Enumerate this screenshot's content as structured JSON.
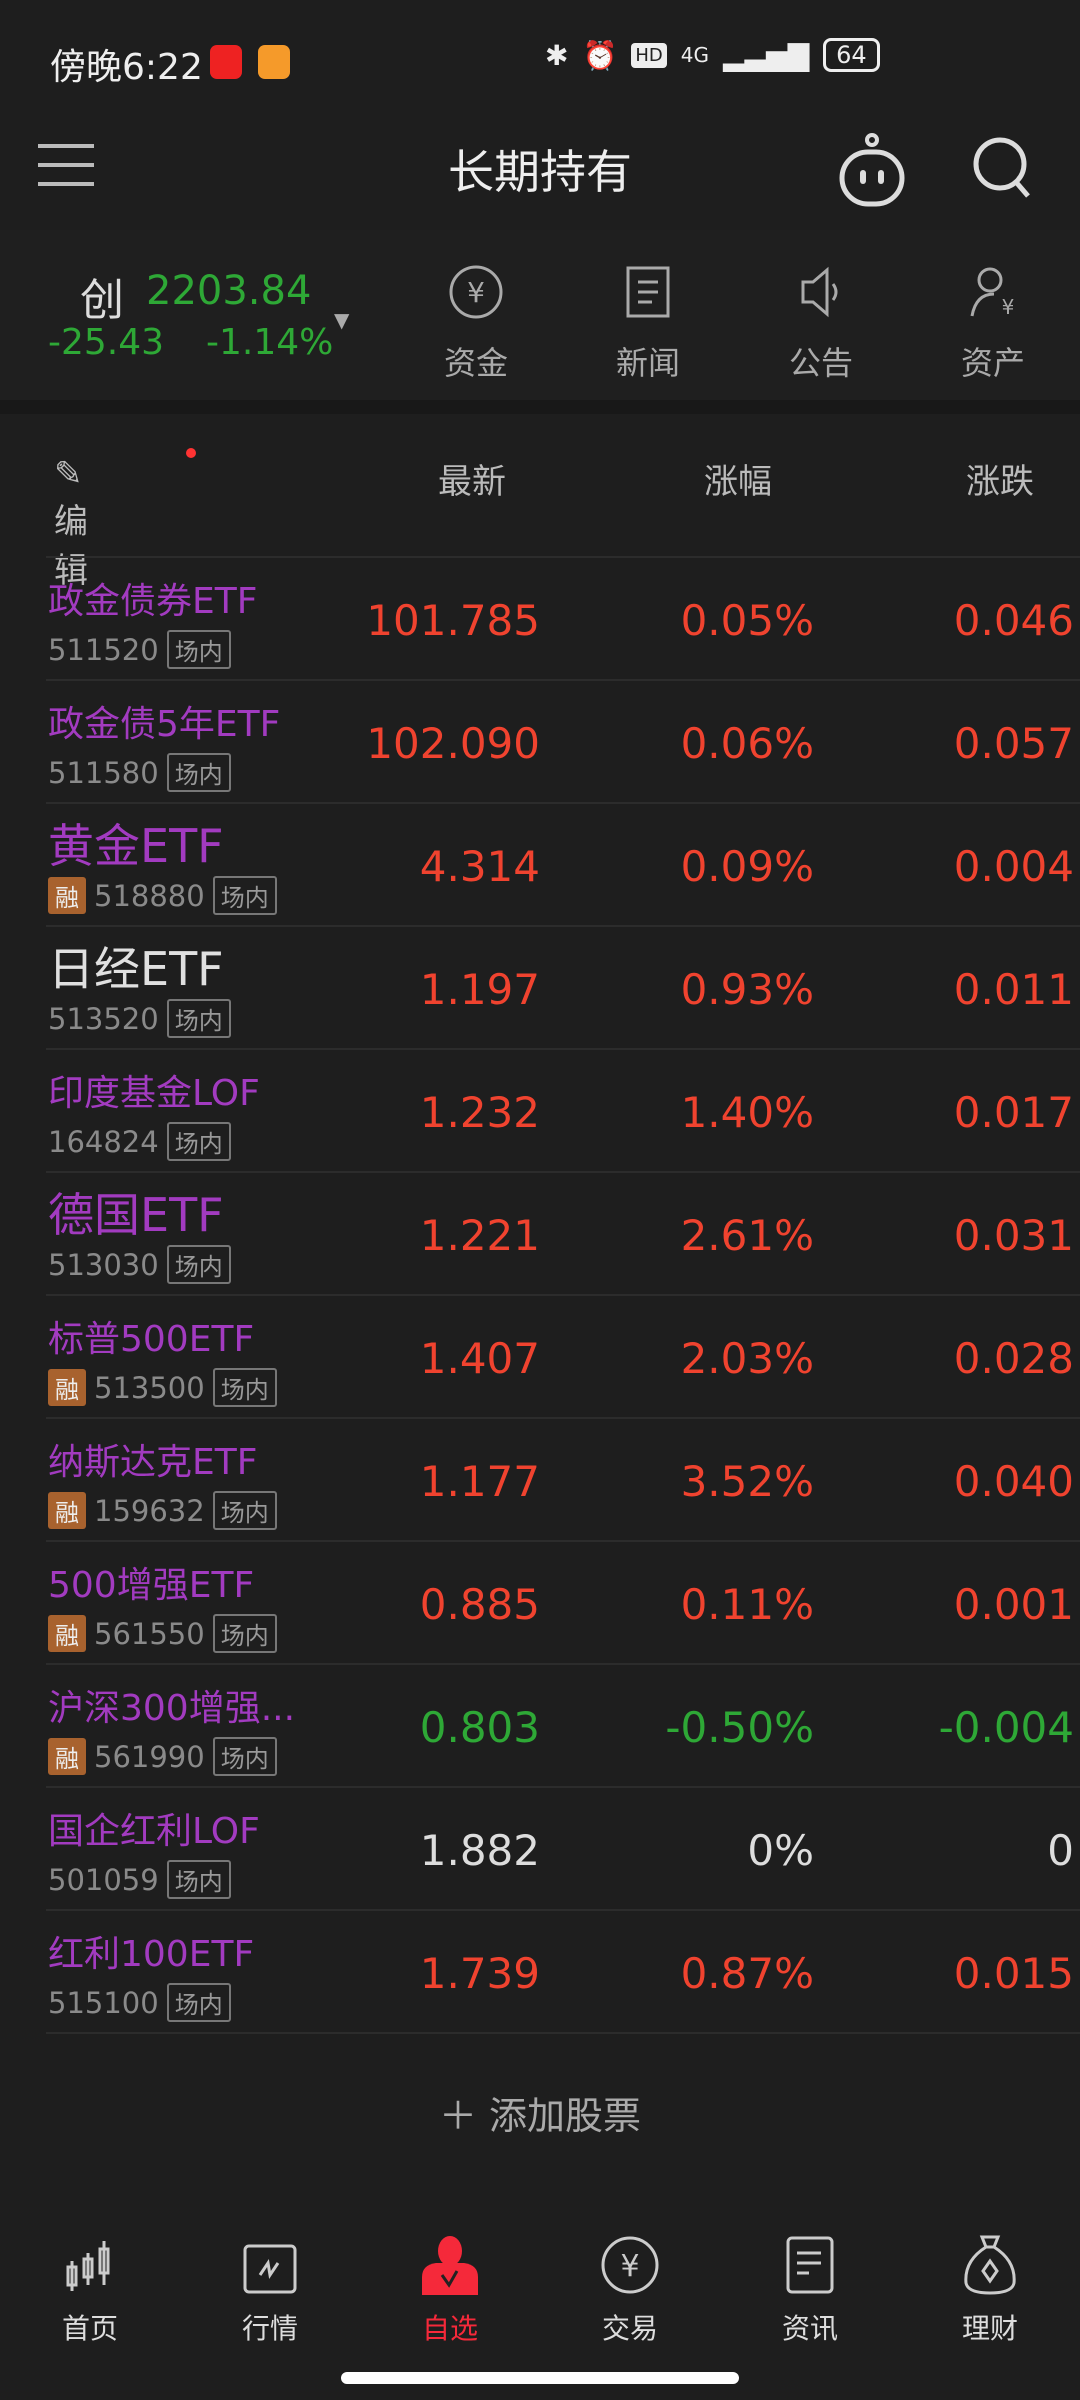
{
  "status": {
    "time": "傍晚6:22",
    "network": "4G",
    "hd": "HD",
    "battery": "64"
  },
  "header": {
    "title": "长期持有"
  },
  "index": {
    "name": "创",
    "value": "2203.84",
    "change": "-25.43",
    "percent": "-1.14%"
  },
  "quick": [
    {
      "label": "资金",
      "icon": "yuan-circle-icon"
    },
    {
      "label": "新闻",
      "icon": "document-icon"
    },
    {
      "label": "公告",
      "icon": "speaker-icon"
    },
    {
      "label": "资产",
      "icon": "person-yuan-icon"
    }
  ],
  "columns": {
    "edit": "编辑",
    "latest": "最新",
    "change_pct": "涨幅",
    "change": "涨跌"
  },
  "rows": [
    {
      "name": "政金债券ETF",
      "code": "511520",
      "tag": "场内",
      "rong": false,
      "price": "101.785",
      "pct": "0.05%",
      "chg": "0.046",
      "trend": "up"
    },
    {
      "name": "政金债5年ETF",
      "code": "511580",
      "tag": "场内",
      "rong": false,
      "price": "102.090",
      "pct": "0.06%",
      "chg": "0.057",
      "trend": "up"
    },
    {
      "name": "黄金ETF",
      "code": "518880",
      "tag": "场内",
      "rong": true,
      "price": "4.314",
      "pct": "0.09%",
      "chg": "0.004",
      "trend": "up",
      "big": true
    },
    {
      "name": "日经ETF",
      "code": "513520",
      "tag": "场内",
      "rong": false,
      "price": "1.197",
      "pct": "0.93%",
      "chg": "0.011",
      "trend": "up",
      "big": true,
      "white": true
    },
    {
      "name": "印度基金LOF",
      "code": "164824",
      "tag": "场内",
      "rong": false,
      "price": "1.232",
      "pct": "1.40%",
      "chg": "0.017",
      "trend": "up"
    },
    {
      "name": "德国ETF",
      "code": "513030",
      "tag": "场内",
      "rong": false,
      "price": "1.221",
      "pct": "2.61%",
      "chg": "0.031",
      "trend": "up",
      "big": true
    },
    {
      "name": "标普500ETF",
      "code": "513500",
      "tag": "场内",
      "rong": true,
      "price": "1.407",
      "pct": "2.03%",
      "chg": "0.028",
      "trend": "up"
    },
    {
      "name": "纳斯达克ETF",
      "code": "159632",
      "tag": "场内",
      "rong": true,
      "price": "1.177",
      "pct": "3.52%",
      "chg": "0.040",
      "trend": "up"
    },
    {
      "name": "500增强ETF",
      "code": "561550",
      "tag": "场内",
      "rong": true,
      "price": "0.885",
      "pct": "0.11%",
      "chg": "0.001",
      "trend": "up"
    },
    {
      "name": "沪深300增强...",
      "code": "561990",
      "tag": "场内",
      "rong": true,
      "price": "0.803",
      "pct": "-0.50%",
      "chg": "-0.004",
      "trend": "down"
    },
    {
      "name": "国企红利LOF",
      "code": "501059",
      "tag": "场内",
      "rong": false,
      "price": "1.882",
      "pct": "0%",
      "chg": "0",
      "trend": "flat"
    },
    {
      "name": "红利100ETF",
      "code": "515100",
      "tag": "场内",
      "rong": false,
      "price": "1.739",
      "pct": "0.87%",
      "chg": "0.015",
      "trend": "up"
    }
  ],
  "rong_label": "融",
  "add_label": "添加股票",
  "nav": [
    {
      "label": "首页",
      "icon": "candlestick-icon"
    },
    {
      "label": "行情",
      "icon": "chart-icon"
    },
    {
      "label": "自选",
      "icon": "person-check-icon",
      "active": true
    },
    {
      "label": "交易",
      "icon": "yuan-circle-icon"
    },
    {
      "label": "资讯",
      "icon": "news-icon"
    },
    {
      "label": "理财",
      "icon": "money-bag-icon"
    }
  ],
  "colors": {
    "up": "#f0432f",
    "down": "#2ea836",
    "name": "#a23bc0",
    "active": "#f5293a",
    "background": "#1e1e1e"
  }
}
